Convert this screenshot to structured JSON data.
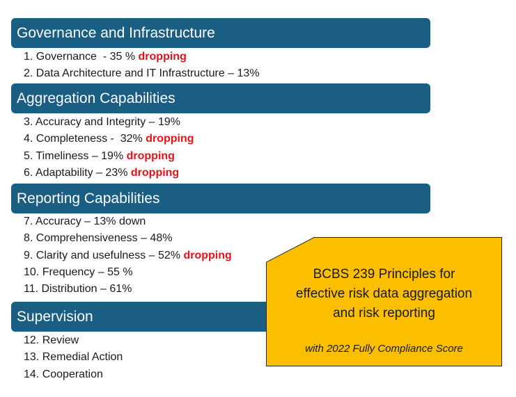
{
  "colors": {
    "header_bg": "#1b5e84",
    "dropping": "#e3121b",
    "callout_bg": "#fcbf00"
  },
  "sections": [
    {
      "title": "Governance and Infrastructure",
      "items": [
        {
          "text": "1. Governance  - 35 % ",
          "flag": "dropping"
        },
        {
          "text": "2. Data Architecture and IT Infrastructure – 13%",
          "flag": ""
        }
      ]
    },
    {
      "title": "Aggregation Capabilities",
      "items": [
        {
          "text": "3. Accuracy and Integrity – 19%",
          "flag": ""
        },
        {
          "text": "4. Completeness -  32% ",
          "flag": "dropping"
        },
        {
          "text": "5. Timeliness – 19% ",
          "flag": "dropping"
        },
        {
          "text": "6. Adaptability – 23% ",
          "flag": "dropping"
        }
      ]
    },
    {
      "title": "Reporting Capabilities",
      "items": [
        {
          "text": "7. Accuracy – 13% down",
          "flag": ""
        },
        {
          "text": "8. Comprehensiveness – 48%",
          "flag": ""
        },
        {
          "text": "9. Clarity and usefulness – 52% ",
          "flag": "dropping"
        },
        {
          "text": "10. Frequency – 55 %",
          "flag": ""
        },
        {
          "text": "11. Distribution – 61%",
          "flag": ""
        }
      ]
    },
    {
      "title": "Supervision",
      "items": [
        {
          "text": "12. Review",
          "flag": ""
        },
        {
          "text": "13. Remedial Action",
          "flag": ""
        },
        {
          "text": "14. Cooperation",
          "flag": ""
        }
      ]
    }
  ],
  "callout": {
    "title_lines": [
      "BCBS 239 Principles for",
      "effective risk data aggregation",
      "and risk reporting"
    ],
    "subtitle": "with 2022 Fully Compliance Score"
  }
}
